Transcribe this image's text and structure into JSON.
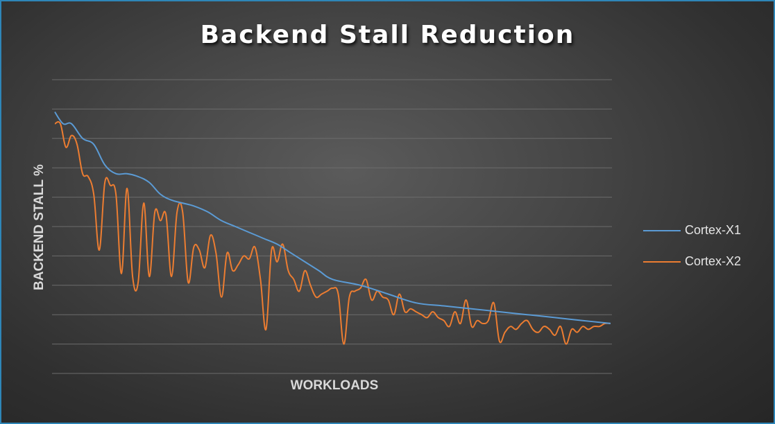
{
  "chart_data": {
    "type": "line",
    "title": "Backend Stall Reduction",
    "xlabel": "WORKLOADS",
    "ylabel": "BACKEND STALL %",
    "ylim": [
      0,
      10
    ],
    "grid": true,
    "legend_position": "right",
    "series": [
      {
        "name": "Cortex-X1",
        "color": "#5b9bd5",
        "x": [
          0,
          3,
          6,
          10,
          14,
          18,
          22,
          26,
          30,
          34,
          38,
          42,
          46,
          50,
          55,
          60,
          65,
          70,
          75,
          80,
          85,
          90,
          95,
          100,
          110,
          120,
          130,
          140,
          150,
          160,
          170,
          180,
          190,
          200
        ],
        "y": [
          8.9,
          8.5,
          8.5,
          8.0,
          7.8,
          7.1,
          6.8,
          6.8,
          6.7,
          6.5,
          6.1,
          5.9,
          5.8,
          5.7,
          5.5,
          5.2,
          5.0,
          4.8,
          4.6,
          4.4,
          4.1,
          3.8,
          3.5,
          3.2,
          3.0,
          2.7,
          2.4,
          2.3,
          2.2,
          2.1,
          2.0,
          1.9,
          1.8,
          1.7
        ]
      },
      {
        "name": "Cortex-X2",
        "color": "#ed7d31",
        "x": [
          0,
          2,
          4,
          6,
          8,
          10,
          12,
          14,
          16,
          18,
          20,
          22,
          24,
          26,
          28,
          30,
          32,
          34,
          36,
          38,
          40,
          42,
          44,
          46,
          48,
          50,
          52,
          54,
          56,
          58,
          60,
          62,
          64,
          66,
          68,
          70,
          72,
          74,
          76,
          78,
          80,
          82,
          84,
          86,
          88,
          90,
          92,
          94,
          96,
          98,
          100,
          102,
          104,
          106,
          108,
          110,
          112,
          114,
          116,
          118,
          120,
          122,
          124,
          126,
          128,
          130,
          132,
          134,
          136,
          138,
          140,
          142,
          144,
          146,
          148,
          150,
          152,
          154,
          156,
          158,
          160,
          162,
          164,
          166,
          168,
          170,
          172,
          174,
          176,
          178,
          180,
          182,
          184,
          186,
          188,
          190,
          192,
          194,
          196,
          198,
          200
        ],
        "y": [
          8.5,
          8.5,
          7.7,
          8.1,
          7.8,
          6.8,
          6.7,
          6.1,
          4.2,
          6.5,
          6.4,
          6.1,
          3.4,
          6.3,
          3.3,
          3.1,
          5.8,
          3.3,
          5.5,
          5.2,
          5.4,
          3.3,
          5.5,
          5.5,
          3.1,
          4.3,
          4.2,
          3.6,
          4.7,
          4.1,
          2.6,
          4.1,
          3.5,
          3.7,
          4.0,
          3.9,
          4.3,
          3.2,
          1.5,
          4.2,
          3.8,
          4.4,
          3.5,
          3.2,
          2.8,
          3.5,
          3.0,
          2.6,
          2.7,
          2.8,
          2.9,
          2.7,
          1.0,
          2.6,
          2.8,
          2.9,
          3.2,
          2.5,
          2.8,
          2.6,
          2.5,
          2.0,
          2.7,
          2.1,
          2.2,
          2.1,
          2.0,
          1.9,
          2.1,
          1.9,
          1.8,
          1.6,
          2.1,
          1.7,
          2.5,
          1.6,
          1.8,
          1.7,
          1.8,
          2.4,
          1.1,
          1.4,
          1.6,
          1.5,
          1.7,
          1.8,
          1.5,
          1.4,
          1.6,
          1.5,
          1.3,
          1.6,
          1.0,
          1.5,
          1.4,
          1.6,
          1.5,
          1.6,
          1.6,
          1.7,
          1.7
        ]
      }
    ]
  }
}
